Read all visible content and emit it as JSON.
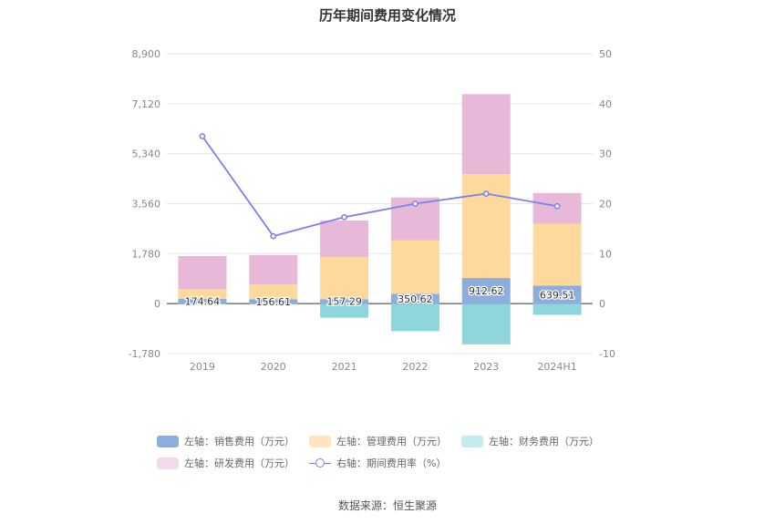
{
  "chart_data": {
    "type": "bar",
    "title": "历年期间费用变化情况",
    "categories": [
      "2019",
      "2020",
      "2021",
      "2022",
      "2023",
      "2024H1"
    ],
    "series": [
      {
        "name": "左轴：销售费用（万元）",
        "kind": "bar",
        "axis": "left",
        "values": [
          174.64,
          156.61,
          157.29,
          350.62,
          912.62,
          639.51
        ],
        "color": "#8daedc",
        "labels": [
          "174.64",
          "156.61",
          "157.29",
          "350.62",
          "912.62",
          "639.51"
        ]
      },
      {
        "name": "左轴：管理费用（万元）",
        "kind": "bar",
        "axis": "left",
        "values": [
          340,
          520,
          1500,
          1900,
          3700,
          2200
        ],
        "color": "#ffd99c"
      },
      {
        "name": "左轴：财务费用（万元）",
        "kind": "bar",
        "axis": "left",
        "values": [
          -30,
          -30,
          -500,
          -980,
          -1450,
          -400
        ],
        "color": "#8dd6db"
      },
      {
        "name": "左轴：研发费用（万元）",
        "kind": "bar",
        "axis": "left",
        "values": [
          1180,
          1050,
          1300,
          1530,
          2850,
          1100
        ],
        "color": "#e8b8d8"
      },
      {
        "name": "右轴：期间费用率（%）",
        "kind": "line",
        "axis": "right",
        "values": [
          33.5,
          13.5,
          17.3,
          20.0,
          22.0,
          19.5
        ],
        "color": "#7b7ff0"
      }
    ],
    "left_axis": {
      "ylim": [
        -1780,
        8900
      ],
      "ticks": [
        "-1,780",
        "0",
        "1,780",
        "3,560",
        "5,340",
        "7,120",
        "8,900"
      ],
      "tick_values": [
        -1780,
        0,
        1780,
        3560,
        5340,
        7120,
        8900
      ]
    },
    "right_axis": {
      "ylim": [
        -10,
        50
      ],
      "ticks": [
        "-10",
        "0",
        "10",
        "20",
        "30",
        "40",
        "50"
      ],
      "tick_values": [
        -10,
        0,
        10,
        20,
        30,
        40,
        50
      ]
    },
    "grid": true,
    "legend_position": "bottom"
  },
  "legend": {
    "items": [
      {
        "label": "左轴：销售费用（万元）",
        "color": "#8daedc"
      },
      {
        "label": "左轴：管理费用（万元）",
        "color": "#ffe6c0"
      },
      {
        "label": "左轴：财务费用（万元）",
        "color": "#c4ecee"
      },
      {
        "label": "左轴：研发费用（万元）",
        "color": "#f3dbeb"
      },
      {
        "label": "右轴：期间费用率（%）",
        "color": "#7b7ff0"
      }
    ]
  },
  "footer": {
    "source": "数据来源：恒生聚源"
  }
}
